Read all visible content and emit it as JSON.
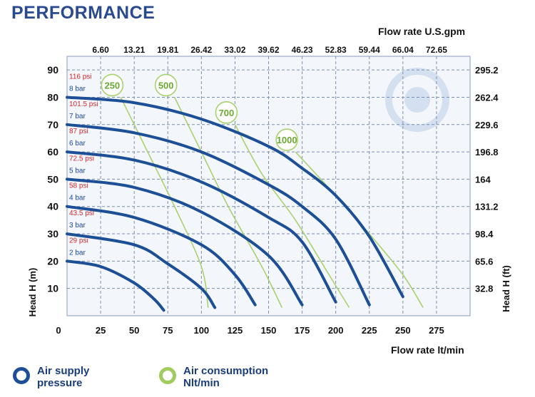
{
  "title": "PERFORMANCE",
  "colors": {
    "pressure_curve": "#1c4f96",
    "air_curve": "#a9d16f",
    "air_label_text": "#6aa832",
    "psi_label": "#d42a2a",
    "bar_label": "#1f4aa0",
    "grid": "#7b8fb5",
    "plot_bg": "#f3f6fa"
  },
  "legend": {
    "pressure": "Air supply\npressure",
    "air": "Air consumption\nNlt/min"
  },
  "chart_data": {
    "type": "line",
    "x_axis": {
      "label": "Flow rate  lt/min",
      "range": [
        0,
        300
      ],
      "ticks": [
        0,
        25,
        50,
        75,
        100,
        125,
        150,
        175,
        200,
        225,
        250,
        275
      ]
    },
    "x_top_axis": {
      "label": "Flow rate U.S.gpm",
      "ticks": [
        "6.60",
        "13.21",
        "19.81",
        "26.42",
        "33.02",
        "39.62",
        "46.23",
        "52.83",
        "59.44",
        "66.04",
        "72.65"
      ],
      "positions_lt_min": [
        25,
        50,
        75,
        100,
        125,
        150,
        175,
        200,
        225,
        250,
        275
      ]
    },
    "y_axis": {
      "label": "Head H (m)",
      "range": [
        0,
        95
      ],
      "ticks": [
        10,
        20,
        30,
        40,
        50,
        60,
        70,
        80,
        90
      ]
    },
    "y_right_axis": {
      "label": "Head H (ft)",
      "ticks": [
        "32.8",
        "65.6",
        "98.4",
        "131.2",
        "164",
        "196.8",
        "229.6",
        "262.4",
        "295.2"
      ],
      "positions_m": [
        10,
        20,
        30,
        40,
        50,
        60,
        70,
        80,
        90
      ]
    },
    "pressure_labels": [
      {
        "psi": "116 psi",
        "bar": "8 bar"
      },
      {
        "psi": "101.5 psi",
        "bar": "7 bar"
      },
      {
        "psi": "87 psi",
        "bar": "6 bar"
      },
      {
        "psi": "72.5 psi",
        "bar": "5 bar"
      },
      {
        "psi": "58 psi",
        "bar": "4 bar"
      },
      {
        "psi": "43.5 psi",
        "bar": "3 bar"
      },
      {
        "psi": "29 psi",
        "bar": "2 bar"
      }
    ],
    "series": [
      {
        "group": "air_supply_pressure",
        "name": "8 bar",
        "x": [
          0,
          50,
          100,
          150,
          175,
          200,
          225,
          250
        ],
        "y": [
          80,
          78,
          72,
          62,
          54,
          44,
          29,
          7
        ]
      },
      {
        "group": "air_supply_pressure",
        "name": "7 bar",
        "x": [
          0,
          50,
          100,
          150,
          175,
          200,
          225
        ],
        "y": [
          70,
          67,
          60,
          48,
          40,
          28,
          4
        ]
      },
      {
        "group": "air_supply_pressure",
        "name": "6 bar",
        "x": [
          0,
          50,
          100,
          150,
          175,
          200
        ],
        "y": [
          60,
          57,
          49,
          36,
          27,
          5
        ]
      },
      {
        "group": "air_supply_pressure",
        "name": "5 bar",
        "x": [
          0,
          50,
          100,
          150,
          175
        ],
        "y": [
          50,
          47,
          38,
          22,
          4
        ]
      },
      {
        "group": "air_supply_pressure",
        "name": "4 bar",
        "x": [
          0,
          50,
          100,
          125,
          140
        ],
        "y": [
          40,
          36,
          26,
          15,
          4
        ]
      },
      {
        "group": "air_supply_pressure",
        "name": "3 bar",
        "x": [
          0,
          50,
          75,
          100,
          110
        ],
        "y": [
          30,
          26,
          19,
          10,
          3
        ]
      },
      {
        "group": "air_supply_pressure",
        "name": "2 bar",
        "x": [
          0,
          25,
          50,
          65,
          72
        ],
        "y": [
          20,
          18,
          12,
          6,
          2
        ]
      },
      {
        "group": "air_consumption",
        "name": "250",
        "x": [
          40,
          60,
          80,
          100,
          105
        ],
        "y": [
          80,
          60,
          40,
          18,
          3
        ]
      },
      {
        "group": "air_consumption",
        "name": "500",
        "x": [
          80,
          100,
          120,
          145,
          160
        ],
        "y": [
          80,
          60,
          40,
          18,
          3
        ]
      },
      {
        "group": "air_consumption",
        "name": "700",
        "x": [
          125,
          145,
          170,
          195,
          210
        ],
        "y": [
          70,
          52,
          35,
          15,
          3
        ]
      },
      {
        "group": "air_consumption",
        "name": "1000",
        "x": [
          170,
          200,
          225,
          250,
          265
        ],
        "y": [
          60,
          44,
          30,
          15,
          3
        ]
      }
    ]
  }
}
